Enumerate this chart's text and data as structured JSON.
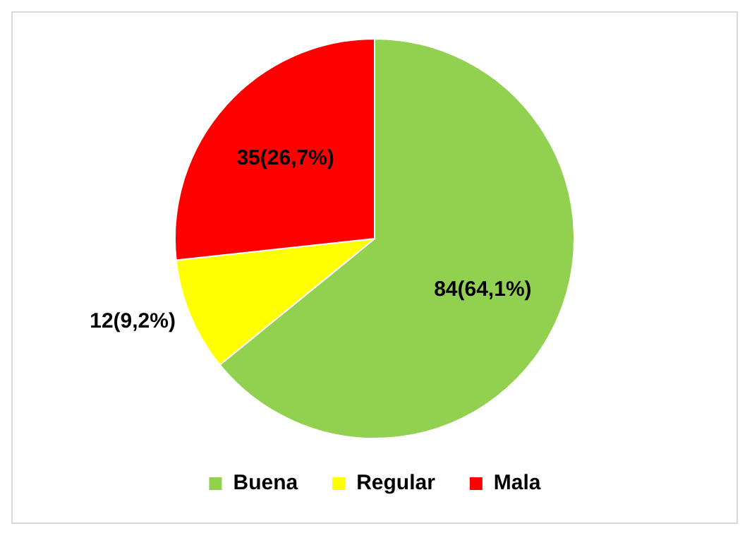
{
  "chart_data": {
    "type": "pie",
    "categories": [
      "Buena",
      "Regular",
      "Mala"
    ],
    "values": [
      84,
      12,
      35
    ],
    "colors": [
      "#92d050",
      "#ffff00",
      "#ff0000"
    ],
    "value_labels": [
      "84(64,1%)",
      "12(9,2%)",
      "35(26,7%)"
    ],
    "legend": "bottom"
  }
}
